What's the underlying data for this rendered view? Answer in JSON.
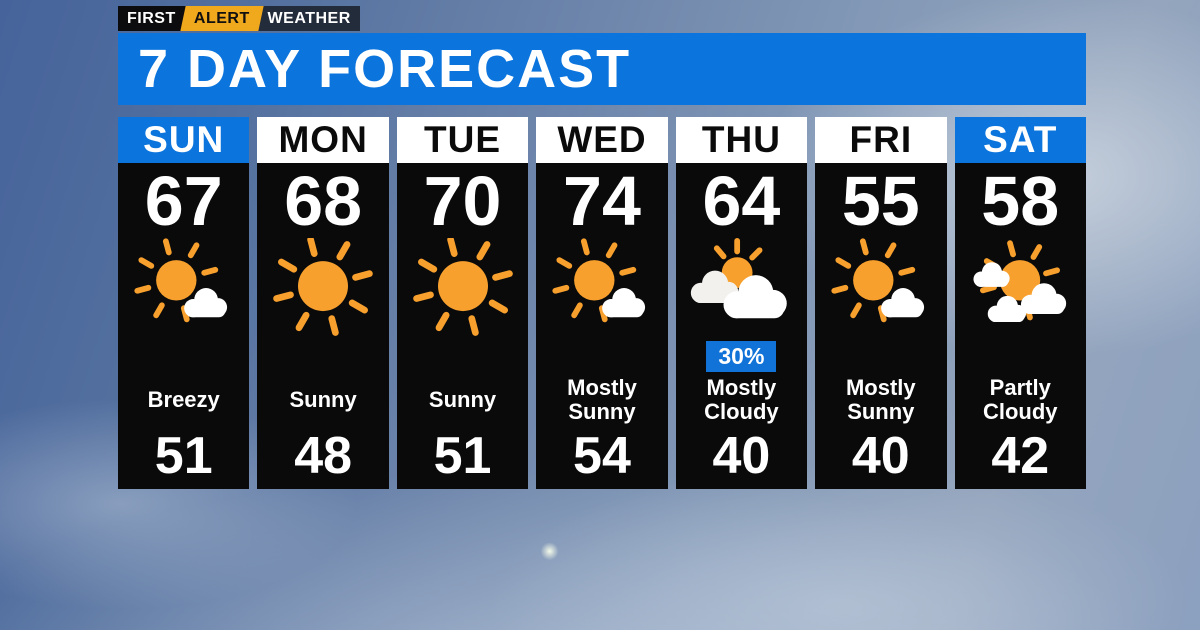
{
  "brand": {
    "first": "FIRST",
    "alert": "ALERT",
    "weather": "WEATHER"
  },
  "title": "7 DAY FORECAST",
  "forecast": {
    "days": [
      {
        "day": "SUN",
        "high": "67",
        "low": "51",
        "condition": "Breezy",
        "icon": "mostly-sunny",
        "precip": "",
        "header": "blue"
      },
      {
        "day": "MON",
        "high": "68",
        "low": "48",
        "condition": "Sunny",
        "icon": "sunny",
        "precip": "",
        "header": "white"
      },
      {
        "day": "TUE",
        "high": "70",
        "low": "51",
        "condition": "Sunny",
        "icon": "sunny",
        "precip": "",
        "header": "white"
      },
      {
        "day": "WED",
        "high": "74",
        "low": "54",
        "condition": "Mostly Sunny",
        "icon": "mostly-sunny",
        "precip": "",
        "header": "white"
      },
      {
        "day": "THU",
        "high": "64",
        "low": "40",
        "condition": "Mostly Cloudy",
        "icon": "mostly-cloudy",
        "precip": "30%",
        "header": "white"
      },
      {
        "day": "FRI",
        "high": "55",
        "low": "40",
        "condition": "Mostly Sunny",
        "icon": "mostly-sunny",
        "precip": "",
        "header": "white"
      },
      {
        "day": "SAT",
        "high": "58",
        "low": "42",
        "condition": "Partly Cloudy",
        "icon": "partly-cloudy",
        "precip": "",
        "header": "blue"
      }
    ]
  },
  "colors": {
    "accent_blue": "#0b74dd",
    "badge_blue": "#1173d8",
    "sun_orange": "#f7a02e",
    "panel_black": "#0a0a0a",
    "logo_yellow": "#f0a81c",
    "logo_dark_gray": "#232c3b",
    "text_white": "#ffffff"
  }
}
